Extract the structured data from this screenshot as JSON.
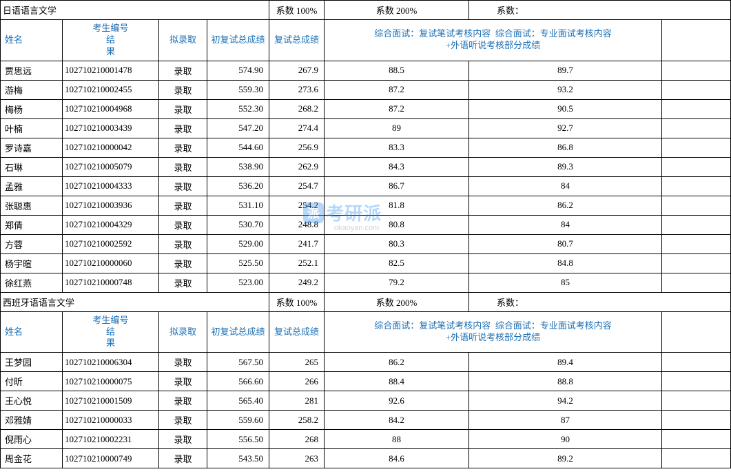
{
  "sections": [
    {
      "title": "日语语言文学",
      "coef1_label": "系数",
      "coef1_value": "100%",
      "coef2_label": "系数",
      "coef2_value": "200%",
      "coef3_label": "系数：",
      "headers": {
        "name": "姓名",
        "id": "考生编号",
        "result": "结\n果",
        "status": "拟录取",
        "score1": "初复试总成绩",
        "score2": "复试总成绩",
        "interview1": "综合面试：复试笔试考核内容",
        "interview2": "综合面试：专业面试考核内容\n+外语听说考核部分成绩"
      },
      "rows": [
        {
          "name": "贾思远",
          "id": "102710210001478",
          "status": "录取",
          "sc1": "574.90",
          "sc2": "267.9",
          "i1": "88.5",
          "i2": "89.7"
        },
        {
          "name": "游梅",
          "id": "102710210002455",
          "status": "录取",
          "sc1": "559.30",
          "sc2": "273.6",
          "i1": "87.2",
          "i2": "93.2"
        },
        {
          "name": "梅杨",
          "id": "102710210004968",
          "status": "录取",
          "sc1": "552.30",
          "sc2": "268.2",
          "i1": "87.2",
          "i2": "90.5"
        },
        {
          "name": "叶楠",
          "id": "102710210003439",
          "status": "录取",
          "sc1": "547.20",
          "sc2": "274.4",
          "i1": "89",
          "i2": "92.7"
        },
        {
          "name": "罗诗嘉",
          "id": "102710210000042",
          "status": "录取",
          "sc1": "544.60",
          "sc2": "256.9",
          "i1": "83.3",
          "i2": "86.8"
        },
        {
          "name": "石琳",
          "id": "102710210005079",
          "status": "录取",
          "sc1": "538.90",
          "sc2": "262.9",
          "i1": "84.3",
          "i2": "89.3"
        },
        {
          "name": "孟雅",
          "id": "102710210004333",
          "status": "录取",
          "sc1": "536.20",
          "sc2": "254.7",
          "i1": "86.7",
          "i2": "84"
        },
        {
          "name": "张聪惠",
          "id": "102710210003936",
          "status": "录取",
          "sc1": "531.10",
          "sc2": "254.2",
          "i1": "81.8",
          "i2": "86.2"
        },
        {
          "name": "郑倩",
          "id": "102710210004329",
          "status": "录取",
          "sc1": "530.70",
          "sc2": "248.8",
          "i1": "80.8",
          "i2": "84"
        },
        {
          "name": "方蓉",
          "id": "102710210002592",
          "status": "录取",
          "sc1": "529.00",
          "sc2": "241.7",
          "i1": "80.3",
          "i2": "80.7"
        },
        {
          "name": "杨宇暄",
          "id": "102710210000060",
          "status": "录取",
          "sc1": "525.50",
          "sc2": "252.1",
          "i1": "82.5",
          "i2": "84.8"
        },
        {
          "name": "徐红燕",
          "id": "102710210000748",
          "status": "录取",
          "sc1": "523.00",
          "sc2": "249.2",
          "i1": "79.2",
          "i2": "85"
        }
      ]
    },
    {
      "title": "西班牙语语言文学",
      "coef1_label": "系数",
      "coef1_value": "100%",
      "coef2_label": "系数",
      "coef2_value": "200%",
      "coef3_label": "系数：",
      "headers": {
        "name": "姓名",
        "id": "考生编号",
        "result": "结\n果",
        "status": "拟录取",
        "score1": "初复试总成绩",
        "score2": "复试总成绩",
        "interview1": "综合面试：复试笔试考核内容",
        "interview2": "综合面试：专业面试考核内容\n+外语听说考核部分成绩"
      },
      "rows": [
        {
          "name": "王梦园",
          "id": "102710210006304",
          "status": "录取",
          "sc1": "567.50",
          "sc2": "265",
          "i1": "86.2",
          "i2": "89.4"
        },
        {
          "name": "付昕",
          "id": "102710210000075",
          "status": "录取",
          "sc1": "566.60",
          "sc2": "266",
          "i1": "88.4",
          "i2": "88.8"
        },
        {
          "name": "王心悦",
          "id": "102710210001509",
          "status": "录取",
          "sc1": "565.40",
          "sc2": "281",
          "i1": "92.6",
          "i2": "94.2"
        },
        {
          "name": "邓雅婧",
          "id": "102710210000033",
          "status": "录取",
          "sc1": "559.60",
          "sc2": "258.2",
          "i1": "84.2",
          "i2": "87"
        },
        {
          "name": "倪雨心",
          "id": "102710210002231",
          "status": "录取",
          "sc1": "556.50",
          "sc2": "268",
          "i1": "88",
          "i2": "90"
        },
        {
          "name": "周金花",
          "id": "102710210000749",
          "status": "录取",
          "sc1": "543.50",
          "sc2": "263",
          "i1": "84.6",
          "i2": "89.2"
        }
      ]
    }
  ],
  "watermark": {
    "badge": "派",
    "text": "考研派",
    "sub": "okaoyan.com"
  },
  "colors": {
    "header_text": "#1a6fb5",
    "border": "#000000",
    "background": "#ffffff",
    "watermark_blue": "#2e8fef",
    "watermark_gray": "#888888"
  }
}
